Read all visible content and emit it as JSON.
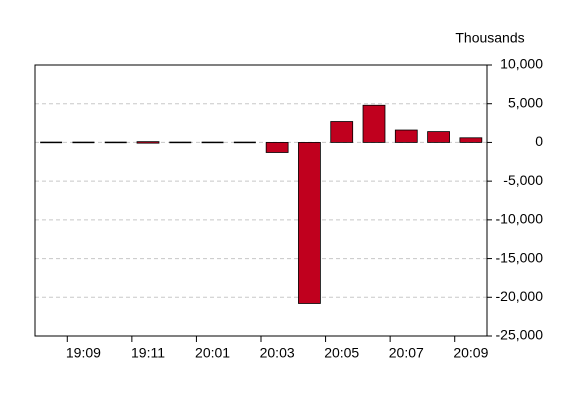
{
  "chart_data": {
    "type": "bar",
    "y_axis_title": "Thousands",
    "categories": [
      null,
      "19:09",
      null,
      "19:11",
      null,
      "20:01",
      null,
      "20:03",
      null,
      "20:05",
      null,
      "20:07",
      null,
      "20:09"
    ],
    "values": [
      0,
      0,
      0,
      100,
      0,
      0,
      0,
      -1300,
      -20800,
      2700,
      4800,
      1600,
      1400,
      600
    ],
    "color": "#c0001e",
    "ylim": [
      -25000,
      10000
    ],
    "yticks": [
      {
        "value": -25000,
        "label": "-25,000"
      },
      {
        "value": -20000,
        "label": "-20,000"
      },
      {
        "value": -15000,
        "label": "-15,000"
      },
      {
        "value": -10000,
        "label": "-10,000"
      },
      {
        "value": -5000,
        "label": "-5,000"
      },
      0,
      {
        "value": 5000,
        "label": "5,000"
      },
      {
        "value": 10000,
        "label": "10,000"
      }
    ],
    "grid": true
  }
}
